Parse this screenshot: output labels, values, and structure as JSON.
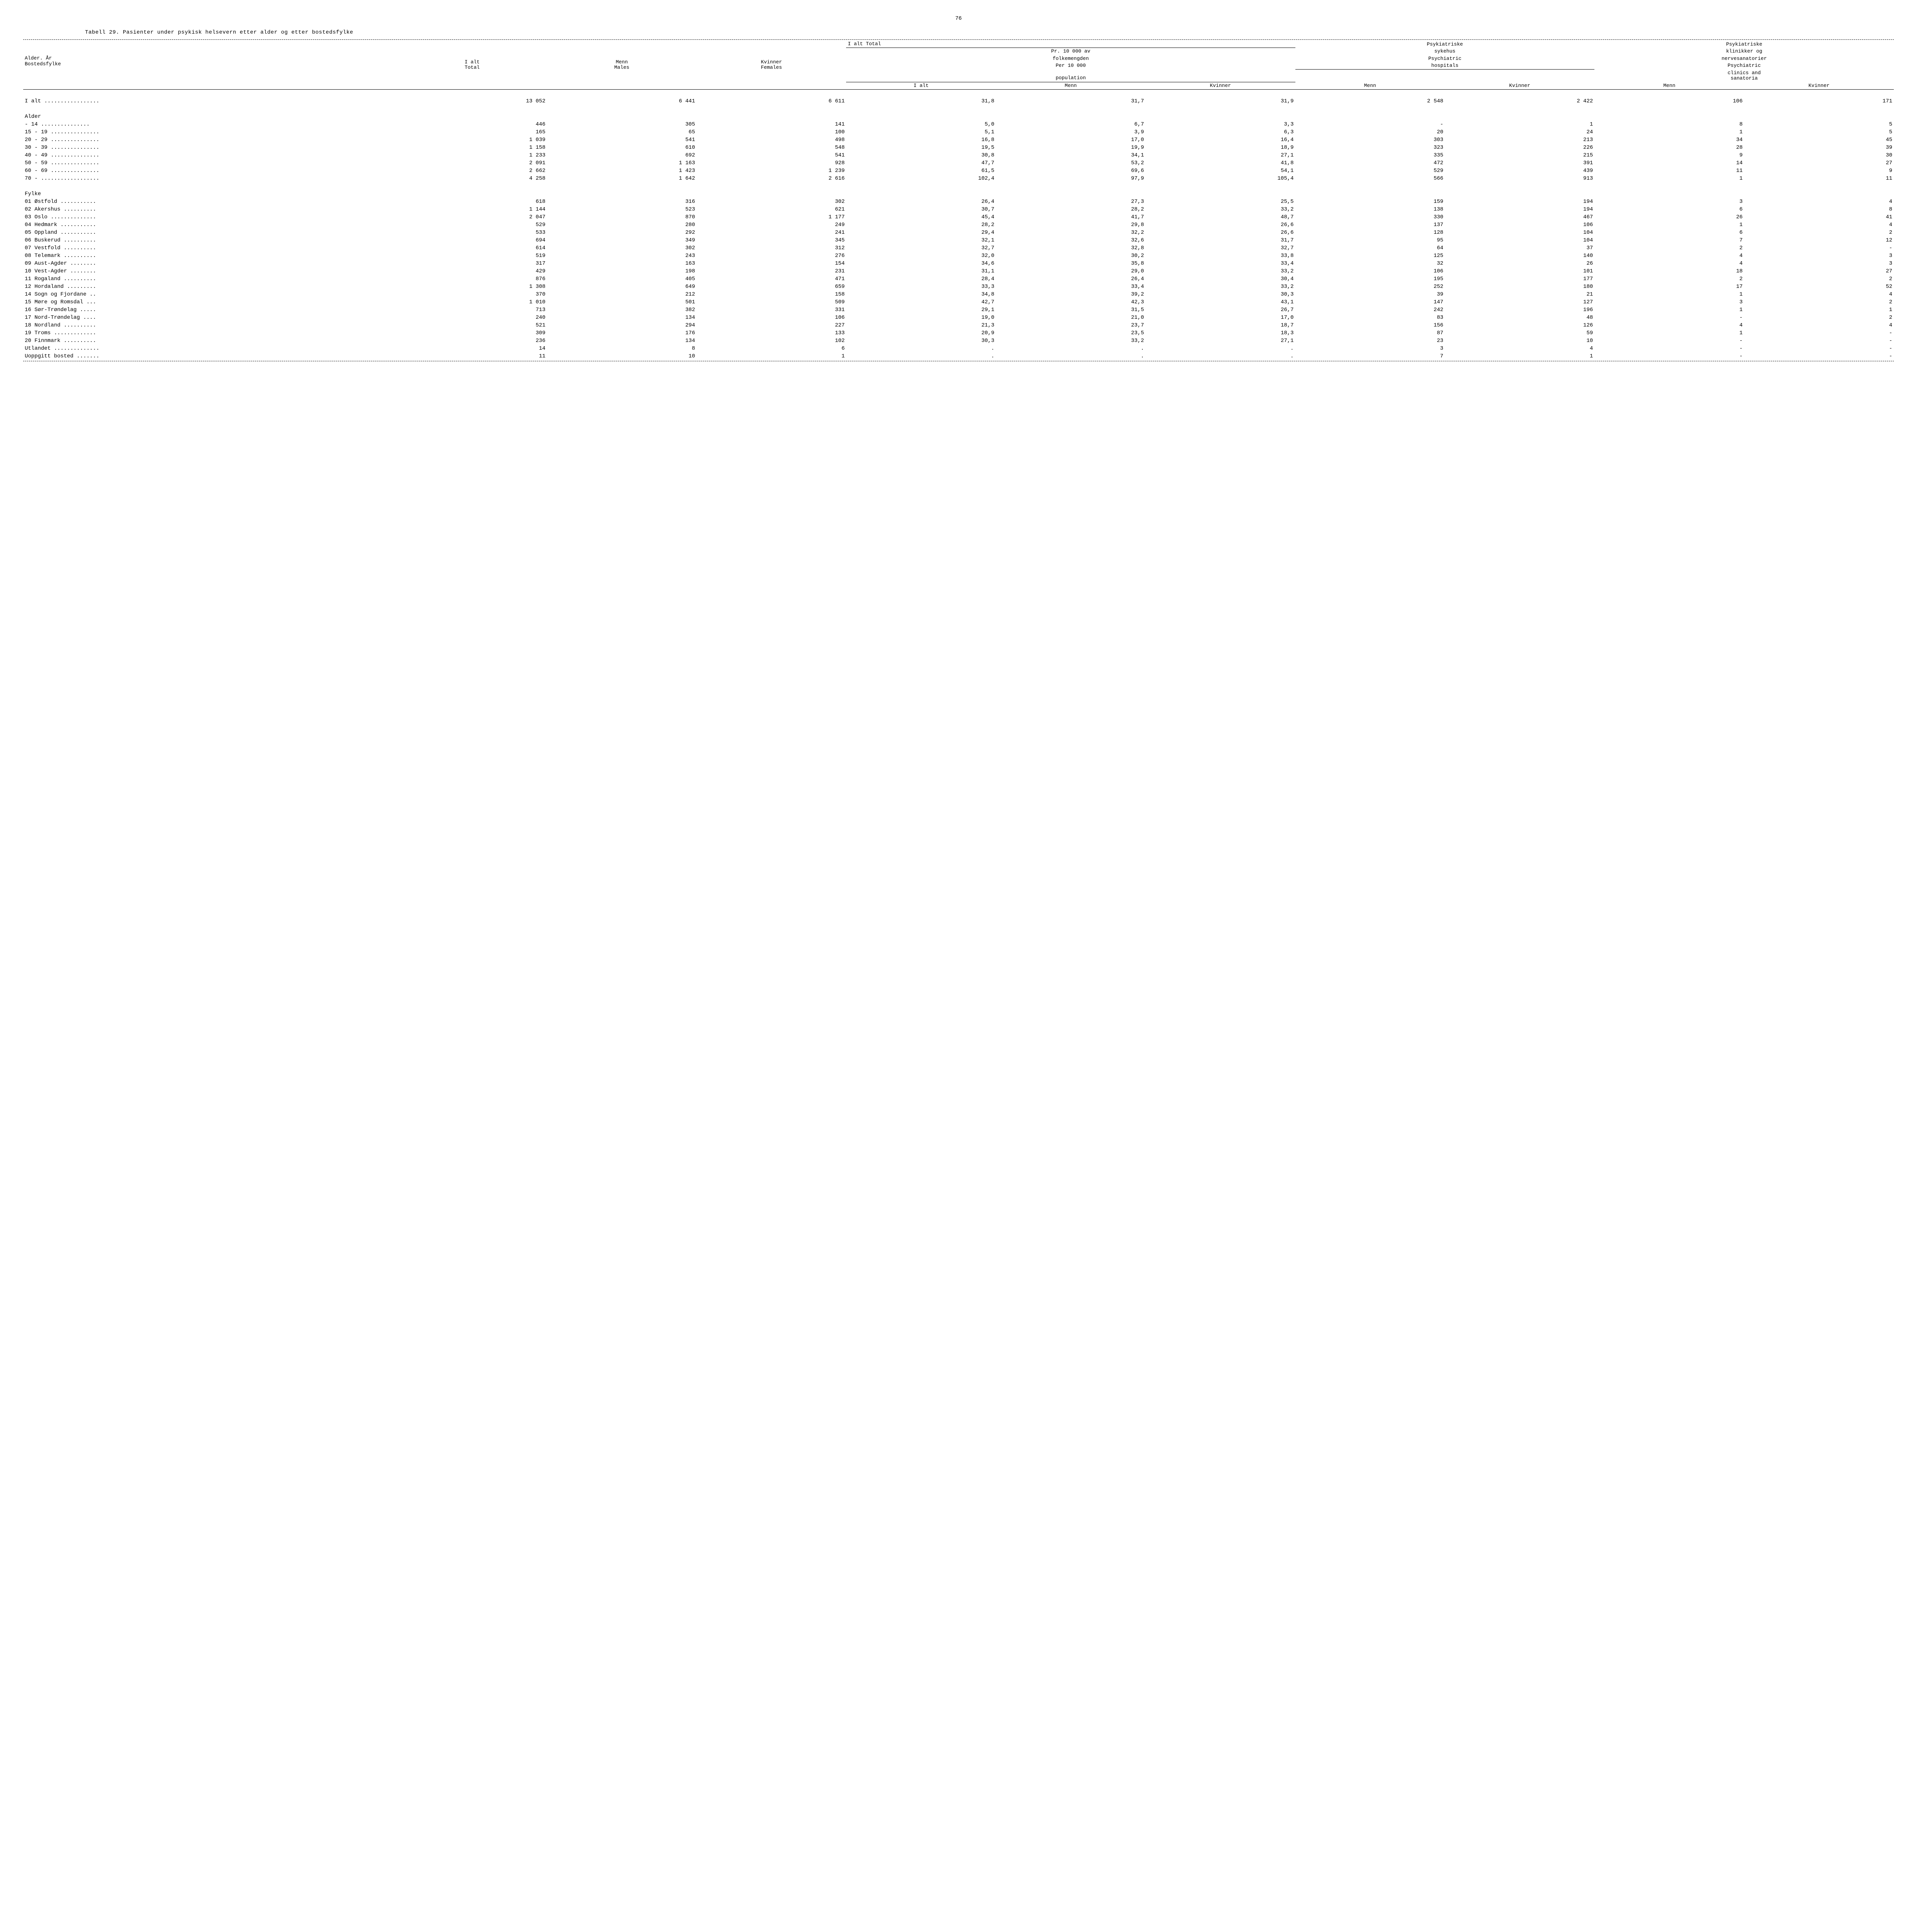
{
  "page_number": "76",
  "title": "Tabell 29.  Pasienter under psykisk helsevern etter alder og etter bostedsfylke",
  "header": {
    "rowLabel1": "Alder. År",
    "rowLabel2": "Bostedsfylke",
    "group_total": "I alt  Total",
    "col_ialt": "I alt",
    "col_ialt_sub": "Total",
    "col_menn": "Menn",
    "col_menn_sub": "Males",
    "col_kvinner": "Kvinner",
    "col_kvinner_sub": "Females",
    "group_per10000_1": "Pr. 10 000 av",
    "group_per10000_2": "folkemengden",
    "group_per10000_3": "Per 10 000",
    "group_per10000_4": "population",
    "sub_ialt": "I alt",
    "sub_menn": "Menn",
    "sub_kvinner": "Kvinner",
    "group_hosp_1": "Psykiatriske",
    "group_hosp_2": "sykehus",
    "group_hosp_3": "Psychiatric",
    "group_hosp_4": "hospitals",
    "group_clin_1": "Psykiatriske",
    "group_clin_2": "klinikker og",
    "group_clin_3": "nervesanatorier",
    "group_clin_4": "Psychiatric",
    "group_clin_5": "clinics and",
    "group_clin_6": "sanatoria"
  },
  "total_row": {
    "label": "I alt .................",
    "c": [
      "13 052",
      "6 441",
      "6 611",
      "31,8",
      "31,7",
      "31,9",
      "2 548",
      "2 422",
      "106",
      "171"
    ]
  },
  "alder_label": "Alder",
  "alder_rows": [
    {
      "label": "    - 14 ...............",
      "c": [
        "446",
        "305",
        "141",
        "5,0",
        "6,7",
        "3,3",
        "-",
        "1",
        "8",
        "5"
      ]
    },
    {
      "label": "15 - 19 ...............",
      "c": [
        "165",
        "65",
        "100",
        "5,1",
        "3,9",
        "6,3",
        "20",
        "24",
        "1",
        "5"
      ]
    },
    {
      "label": "20 - 29 ...............",
      "c": [
        "1 039",
        "541",
        "498",
        "16,8",
        "17,0",
        "16,4",
        "303",
        "213",
        "34",
        "45"
      ]
    },
    {
      "label": "30 - 39 ...............",
      "c": [
        "1 158",
        "610",
        "548",
        "19,5",
        "19,9",
        "18,9",
        "323",
        "226",
        "28",
        "39"
      ]
    },
    {
      "label": "40 - 49 ...............",
      "c": [
        "1 233",
        "692",
        "541",
        "30,8",
        "34,1",
        "27,1",
        "335",
        "215",
        "9",
        "30"
      ]
    },
    {
      "label": "50 - 59 ...............",
      "c": [
        "2 091",
        "1 163",
        "928",
        "47,7",
        "53,2",
        "41,8",
        "472",
        "391",
        "14",
        "27"
      ]
    },
    {
      "label": "60 - 69 ...............",
      "c": [
        "2 662",
        "1 423",
        "1 239",
        "61,5",
        "69,6",
        "54,1",
        "529",
        "439",
        "11",
        "9"
      ]
    },
    {
      "label": "70 -    ..................",
      "c": [
        "4 258",
        "1 642",
        "2 616",
        "102,4",
        "97,9",
        "105,4",
        "566",
        "913",
        "1",
        "11"
      ]
    }
  ],
  "fylke_label": "Fylke",
  "fylke_rows": [
    {
      "label": "01  Østfold ...........",
      "c": [
        "618",
        "316",
        "302",
        "26,4",
        "27,3",
        "25,5",
        "159",
        "194",
        "3",
        "4"
      ]
    },
    {
      "label": "02  Akershus ..........",
      "c": [
        "1 144",
        "523",
        "621",
        "30,7",
        "28,2",
        "33,2",
        "138",
        "194",
        "6",
        "8"
      ]
    },
    {
      "label": "03  Oslo ..............",
      "c": [
        "2 047",
        "870",
        "1 177",
        "45,4",
        "41,7",
        "48,7",
        "330",
        "467",
        "26",
        "41"
      ]
    },
    {
      "label": "04  Hedmark ...........",
      "c": [
        "529",
        "280",
        "249",
        "28,2",
        "29,8",
        "26,6",
        "137",
        "106",
        "1",
        "4"
      ]
    },
    {
      "label": "05  Oppland ...........",
      "c": [
        "533",
        "292",
        "241",
        "29,4",
        "32,2",
        "26,6",
        "128",
        "104",
        "6",
        "2"
      ]
    },
    {
      "label": "06  Buskerud ..........",
      "c": [
        "694",
        "349",
        "345",
        "32,1",
        "32,6",
        "31,7",
        "95",
        "104",
        "7",
        "12"
      ]
    },
    {
      "label": "07  Vestfold ..........",
      "c": [
        "614",
        "302",
        "312",
        "32,7",
        "32,8",
        "32,7",
        "64",
        "37",
        "2",
        "-"
      ]
    },
    {
      "label": "08  Telemark ..........",
      "c": [
        "519",
        "243",
        "276",
        "32,0",
        "30,2",
        "33,8",
        "125",
        "140",
        "4",
        "3"
      ]
    },
    {
      "label": "09  Aust-Agder ........",
      "c": [
        "317",
        "163",
        "154",
        "34,6",
        "35,8",
        "33,4",
        "32",
        "26",
        "4",
        "3"
      ]
    },
    {
      "label": "10  Vest-Agder ........",
      "c": [
        "429",
        "198",
        "231",
        "31,1",
        "29,0",
        "33,2",
        "106",
        "101",
        "18",
        "27"
      ]
    },
    {
      "label": "11  Rogaland ..........",
      "c": [
        "876",
        "405",
        "471",
        "28,4",
        "26,4",
        "30,4",
        "195",
        "177",
        "2",
        "2"
      ]
    },
    {
      "label": "12  Hordaland .........",
      "c": [
        "1 308",
        "649",
        "659",
        "33,3",
        "33,4",
        "33,2",
        "252",
        "180",
        "17",
        "52"
      ]
    },
    {
      "label": "14  Sogn og Fjordane ..",
      "c": [
        "370",
        "212",
        "158",
        "34,8",
        "39,2",
        "30,3",
        "39",
        "21",
        "1",
        "4"
      ]
    },
    {
      "label": "15  Møre og Romsdal ...",
      "c": [
        "1 010",
        "501",
        "509",
        "42,7",
        "42,3",
        "43,1",
        "147",
        "127",
        "3",
        "2"
      ]
    },
    {
      "label": "16  Sør-Trøndelag .....",
      "c": [
        "713",
        "382",
        "331",
        "29,1",
        "31,5",
        "26,7",
        "242",
        "196",
        "1",
        "1"
      ]
    },
    {
      "label": "17  Nord-Trøndelag ....",
      "c": [
        "240",
        "134",
        "106",
        "19,0",
        "21,0",
        "17,0",
        "83",
        "48",
        "-",
        "2"
      ]
    },
    {
      "label": "18  Nordland ..........",
      "c": [
        "521",
        "294",
        "227",
        "21,3",
        "23,7",
        "18,7",
        "156",
        "126",
        "4",
        "4"
      ]
    },
    {
      "label": "19  Troms .............",
      "c": [
        "309",
        "176",
        "133",
        "20,9",
        "23,5",
        "18,3",
        "87",
        "59",
        "1",
        "-"
      ]
    },
    {
      "label": "20  Finnmark ..........",
      "c": [
        "236",
        "134",
        "102",
        "30,3",
        "33,2",
        "27,1",
        "23",
        "10",
        "-",
        "-"
      ]
    },
    {
      "label": "Utlandet ..............",
      "c": [
        "14",
        "8",
        "6",
        ".",
        ".",
        ".",
        "3",
        "4",
        "-",
        "-"
      ]
    },
    {
      "label": "Uoppgitt bosted .......",
      "c": [
        "11",
        "10",
        "1",
        ".",
        ".",
        ".",
        "7",
        "1",
        "-",
        "-"
      ]
    }
  ],
  "columns": [
    "label",
    "ialt",
    "menn",
    "kvinner",
    "p_ialt",
    "p_menn",
    "p_kvinner",
    "h_menn",
    "h_kvinner",
    "c_menn",
    "c_kvinner"
  ]
}
